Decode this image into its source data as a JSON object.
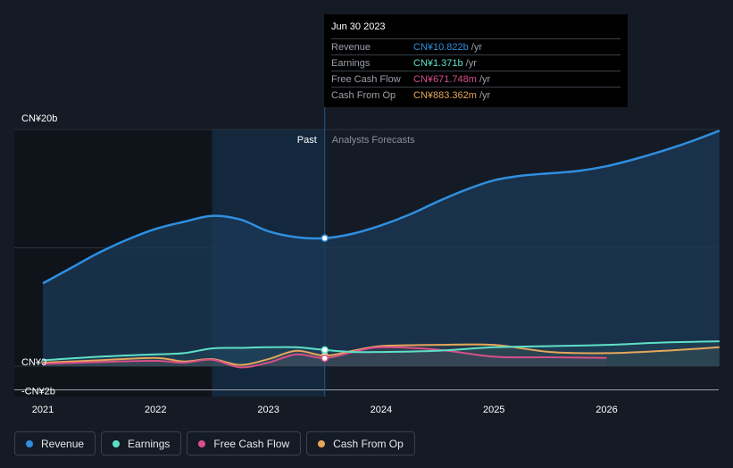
{
  "chart_data": {
    "type": "line",
    "title": "",
    "xlabel": "",
    "ylabel": "",
    "x_ticks": [
      "2021",
      "2022",
      "2023",
      "2024",
      "2025",
      "2026"
    ],
    "y_ticks": [
      "CN¥20b",
      "CN¥0",
      "-CN¥2b"
    ],
    "ylim": [
      -2,
      20
    ],
    "xlim": [
      2021.0,
      2027.0
    ],
    "past_label": "Past",
    "forecast_label": "Analysts Forecasts",
    "past_end": 2023.5,
    "series": [
      {
        "name": "Revenue",
        "color": "#2f8fe0",
        "x": [
          2021.0,
          2021.25,
          2021.5,
          2021.75,
          2022.0,
          2022.25,
          2022.5,
          2022.75,
          2023.0,
          2023.25,
          2023.5,
          2023.75,
          2024.0,
          2024.25,
          2024.5,
          2024.75,
          2025.0,
          2025.25,
          2025.5,
          2025.75,
          2026.0,
          2026.25,
          2026.5,
          2026.75,
          2027.0
        ],
        "y": [
          7.0,
          8.3,
          9.6,
          10.7,
          11.6,
          12.2,
          12.7,
          12.4,
          11.4,
          10.9,
          10.82,
          11.2,
          11.9,
          12.8,
          13.9,
          14.9,
          15.7,
          16.1,
          16.3,
          16.5,
          16.9,
          17.5,
          18.2,
          19.0,
          19.9
        ]
      },
      {
        "name": "Earnings",
        "color": "#5ee0c8",
        "x": [
          2021.0,
          2021.5,
          2022.0,
          2022.25,
          2022.5,
          2022.75,
          2023.0,
          2023.25,
          2023.5,
          2023.75,
          2024.0,
          2024.5,
          2025.0,
          2025.5,
          2026.0,
          2026.5,
          2027.0
        ],
        "y": [
          0.5,
          0.8,
          1.0,
          1.1,
          1.5,
          1.55,
          1.6,
          1.6,
          1.371,
          1.2,
          1.2,
          1.3,
          1.6,
          1.7,
          1.8,
          2.0,
          2.1
        ]
      },
      {
        "name": "Free Cash Flow",
        "color": "#d84f8a",
        "x": [
          2021.0,
          2021.5,
          2022.0,
          2022.25,
          2022.5,
          2022.75,
          2023.0,
          2023.25,
          2023.5,
          2023.75,
          2024.0,
          2024.5,
          2025.0,
          2025.5,
          2026.0
        ],
        "y": [
          0.2,
          0.35,
          0.45,
          0.3,
          0.55,
          -0.1,
          0.3,
          1.0,
          0.672,
          1.2,
          1.6,
          1.4,
          0.8,
          0.75,
          0.7
        ]
      },
      {
        "name": "Cash From Op",
        "color": "#e5a65a",
        "x": [
          2021.0,
          2021.5,
          2022.0,
          2022.25,
          2022.5,
          2022.75,
          2023.0,
          2023.25,
          2023.5,
          2023.75,
          2024.0,
          2024.5,
          2025.0,
          2025.5,
          2026.0,
          2026.5,
          2027.0
        ],
        "y": [
          0.3,
          0.5,
          0.7,
          0.4,
          0.6,
          0.1,
          0.6,
          1.3,
          0.883,
          1.3,
          1.7,
          1.8,
          1.8,
          1.2,
          1.1,
          1.3,
          1.6
        ]
      }
    ],
    "highlight_x": 2023.5
  },
  "tooltip": {
    "date": "Jun 30 2023",
    "rows": [
      {
        "name": "Revenue",
        "value": "CN¥10.822b",
        "unit": "/yr",
        "color": "#2f8fe0"
      },
      {
        "name": "Earnings",
        "value": "CN¥1.371b",
        "unit": "/yr",
        "color": "#5ee0c8"
      },
      {
        "name": "Free Cash Flow",
        "value": "CN¥671.748m",
        "unit": "/yr",
        "color": "#d84f8a"
      },
      {
        "name": "Cash From Op",
        "value": "CN¥883.362m",
        "unit": "/yr",
        "color": "#e5a65a"
      }
    ]
  },
  "legend": [
    {
      "label": "Revenue",
      "color": "#2f8fe0"
    },
    {
      "label": "Earnings",
      "color": "#5ee0c8"
    },
    {
      "label": "Free Cash Flow",
      "color": "#d84f8a"
    },
    {
      "label": "Cash From Op",
      "color": "#e5a65a"
    }
  ]
}
